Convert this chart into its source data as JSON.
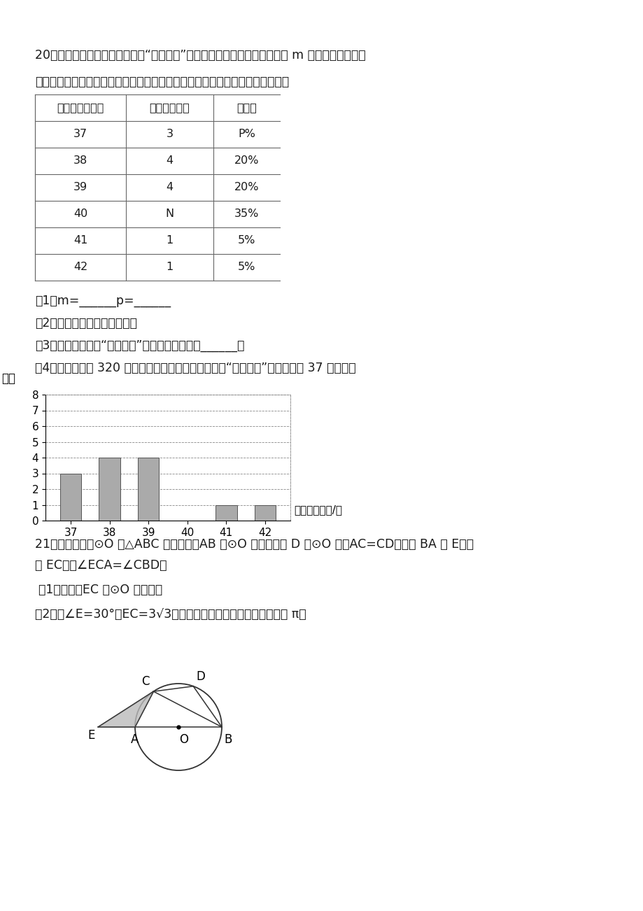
{
  "bg_color": "#ffffff",
  "text_color": "#1a1a1a",
  "para20_line1": "20．某校为了解本校九年级女生“仰卧起坐”的训练情况，随机抽查了该年级 m 名女生进行测试，",
  "para20_line2": "并按测试成绩绨制出以下两幅不完整的统计表，请根据图中的信息解答下列问题",
  "table_headers": [
    "测试成绩（个）",
    "学生数（名）",
    "百分比"
  ],
  "table_rows": [
    [
      "37",
      "3",
      "P%"
    ],
    [
      "38",
      "4",
      "20%"
    ],
    [
      "39",
      "4",
      "20%"
    ],
    [
      "40",
      "N",
      "35%"
    ],
    [
      "41",
      "1",
      "5%"
    ],
    [
      "42",
      "1",
      "5%"
    ]
  ],
  "q1_text": "（1）m=______p=______",
  "q2_text": "（2）补全上面的条形统计图；",
  "q3_text": "（3）被抽取的女生“仰卧起坐”测试成绩的众数是______；",
  "q4_text": "（4）若该年级有 320 名女生，请你估计该年级女生中“仰卧起坐”测试成绩为 37 的人数．",
  "bar_categories": [
    "37",
    "38",
    "39",
    "40",
    "41",
    "42"
  ],
  "bar_values": [
    3,
    4,
    4,
    0,
    1,
    1
  ],
  "bar_color": "#aaaaaa",
  "bar_ylabel": "人数",
  "bar_xlabel": "仰卧起坐数量/个",
  "bar_ylim": [
    0,
    8
  ],
  "bar_yticks": [
    0,
    1,
    2,
    3,
    4,
    5,
    6,
    7,
    8
  ],
  "para21_line1": "21．如图，已知⊙O 是△ABC 的外接圆，AB 是⊙O 的直径，点 D 在⊙O 上，AC=CD，延长 BA 到 E，连",
  "para21_line2": "接 EC，且∠ECA=∠CBD．",
  "q21_1": "（1）求证：EC 是⊙O 的切线；",
  "q21_2": "（2）若∠E=30°，EC=3√3，求图中阴影部分的面积（结果保留 π）"
}
